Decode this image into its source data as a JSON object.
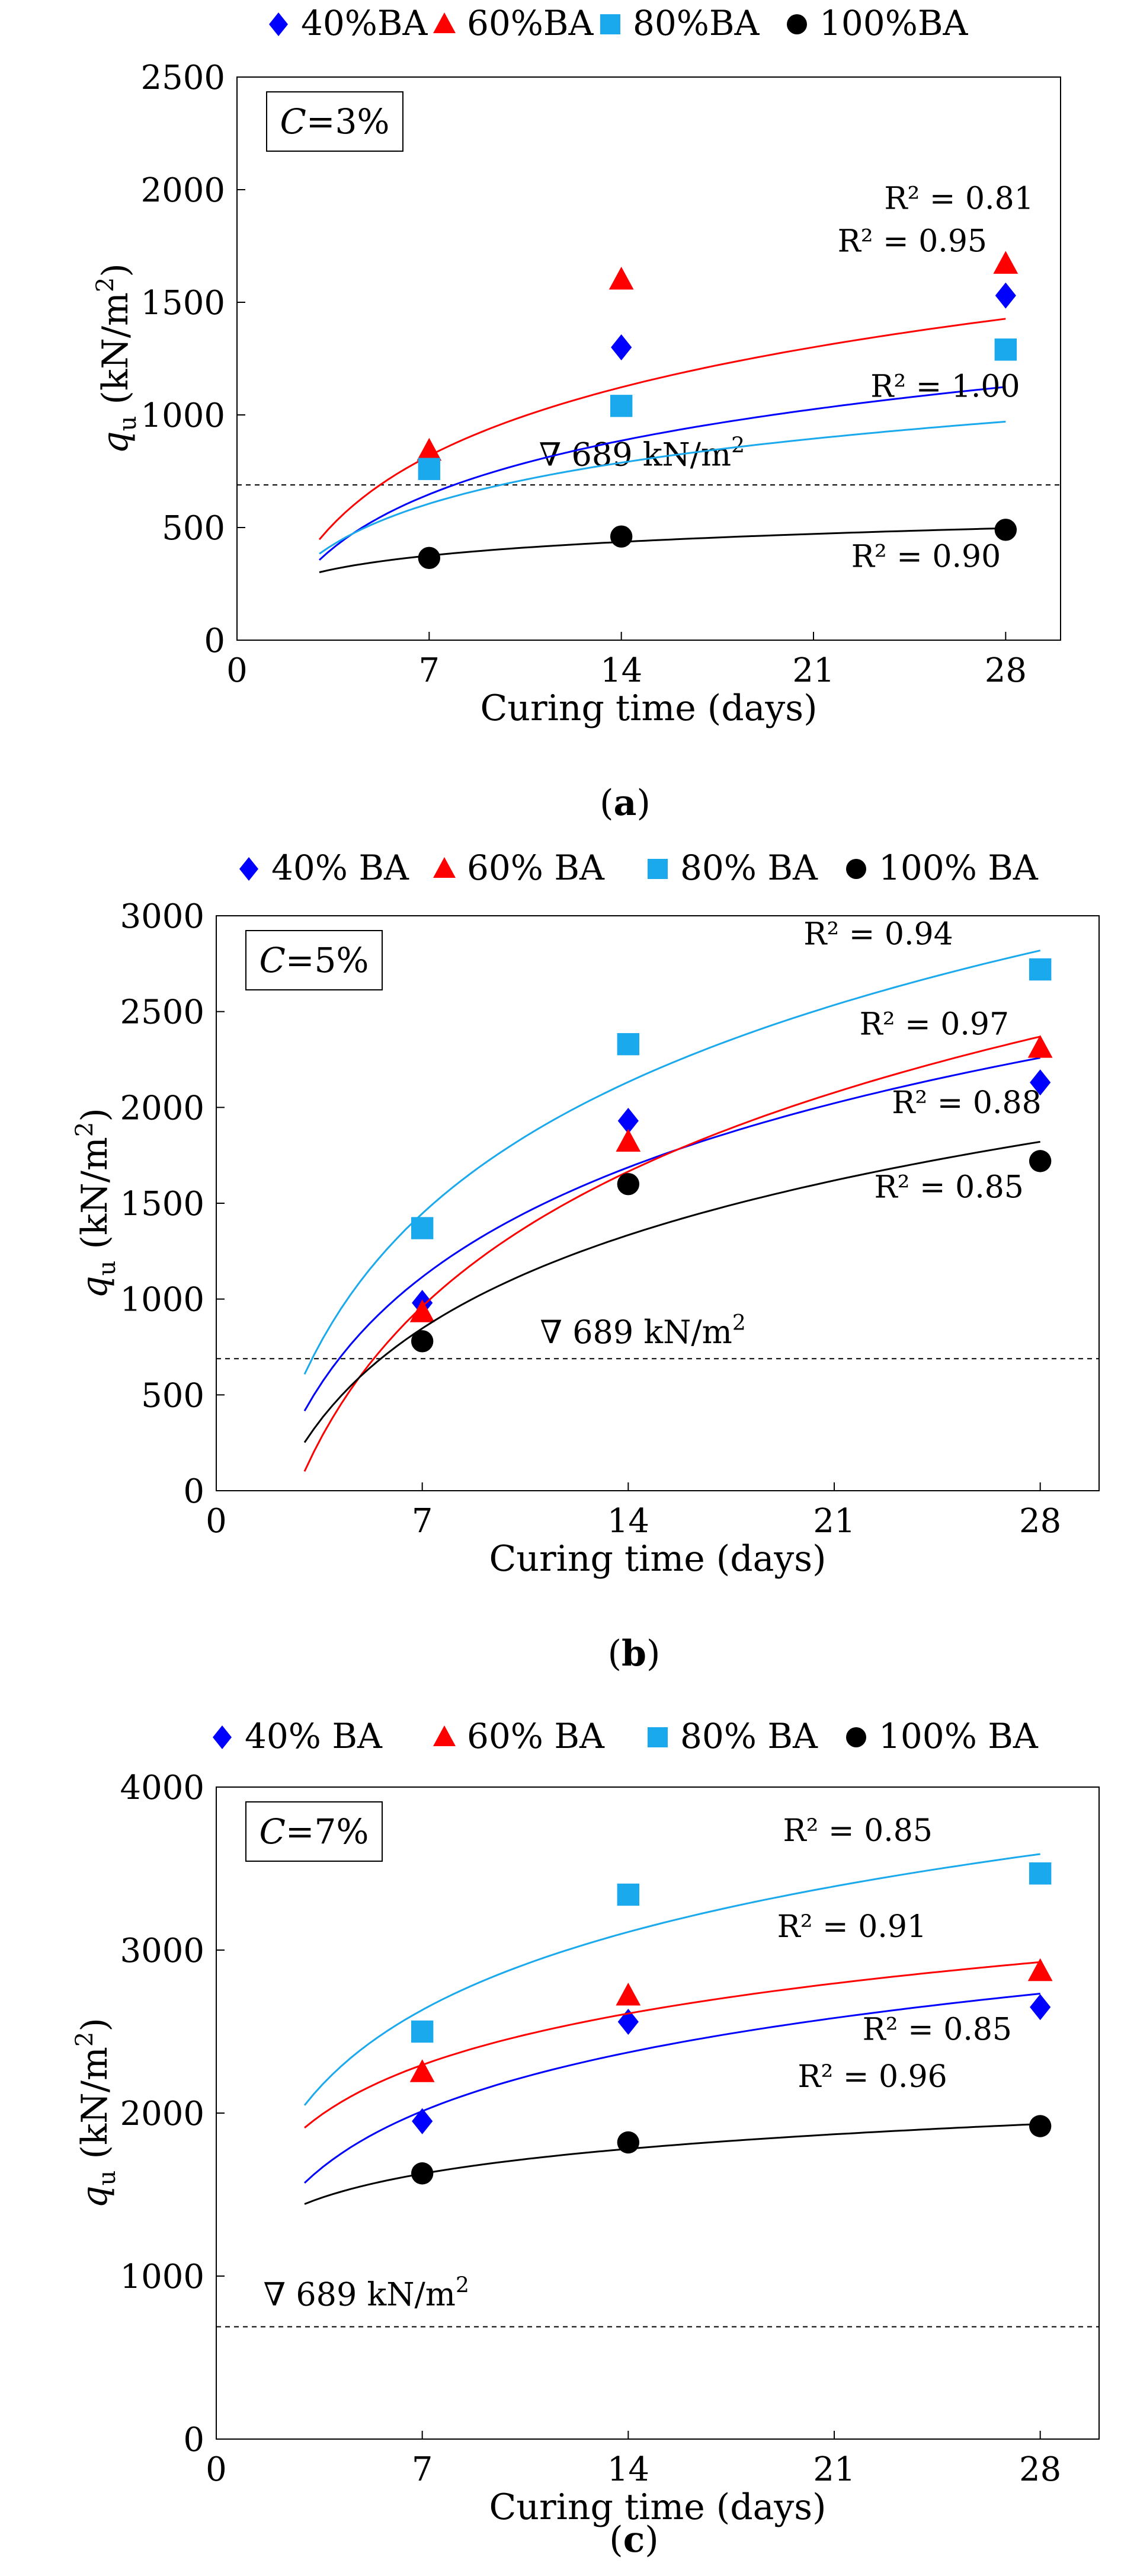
{
  "figure": {
    "panels_count": 3
  },
  "legend_default_marker_names": [
    "diamond",
    "triangle",
    "square",
    "circle"
  ],
  "chart_data": [
    {
      "type": "scatter",
      "panel_label": "(a)",
      "panel_label_letter": "a",
      "annotation_box": "C=3%",
      "xlabel": "Curing time (days)",
      "ylabel": "q_u (kN/m²)",
      "ylabel_parts": {
        "q": "q",
        "sub": "u",
        "unit": " (kN/m",
        "sup": "2",
        "close": ")"
      },
      "xlim": [
        0,
        30
      ],
      "ylim": [
        0,
        2500
      ],
      "xticks": [
        0,
        7,
        14,
        21,
        28
      ],
      "yticks": [
        0,
        500,
        1000,
        1500,
        2000,
        2500
      ],
      "reference_line": {
        "value": 689,
        "label": "∇ 689 kN/m",
        "label_sup": "2",
        "label_x": 11,
        "label_y": 775
      },
      "series": [
        {
          "name": "40%BA",
          "marker": "diamond",
          "color": "#0000ff",
          "x": [
            7,
            14,
            28
          ],
          "y": [
            810,
            1300,
            1530
          ],
          "fit": {
            "a": 344.0,
            "b": -22
          },
          "r2_label": "R² = 0.95",
          "r2_pos": [
            24.6,
            1725
          ]
        },
        {
          "name": "60%BA",
          "marker": "triangle",
          "color": "#ff0000",
          "x": [
            7,
            14,
            28
          ],
          "y": [
            840,
            1600,
            1670
          ],
          "fit": {
            "a": 438.7,
            "b": -35
          },
          "r2_label": "R² = 0.81",
          "r2_pos": [
            26.3,
            1915
          ]
        },
        {
          "name": "80%BA",
          "marker": "square",
          "color": "#1aa9ec",
          "x": [
            7,
            14,
            28
          ],
          "y": [
            760,
            1040,
            1290
          ],
          "fit": {
            "a": 262.6,
            "b": 95
          },
          "r2_label": "R² = 1.00",
          "r2_pos": [
            25.8,
            1080
          ]
        },
        {
          "name": "100%BA",
          "marker": "circle",
          "color": "#000000",
          "x": [
            7,
            14,
            28
          ],
          "y": [
            365,
            460,
            490
          ],
          "fit": {
            "a": 87.6,
            "b": 205
          },
          "r2_label": "R² = 0.90",
          "r2_pos": [
            25.1,
            325
          ]
        }
      ]
    },
    {
      "type": "scatter",
      "panel_label": "(b)",
      "panel_label_letter": "b",
      "annotation_box": "C=5%",
      "xlabel": "Curing time (days)",
      "ylabel": "q_u (kN/m²)",
      "ylabel_parts": {
        "q": "q",
        "sub": "u",
        "unit": " (kN/m",
        "sup": "2",
        "close": ")"
      },
      "xlim": [
        0,
        30
      ],
      "ylim": [
        0,
        3000
      ],
      "xticks": [
        0,
        7,
        14,
        21,
        28
      ],
      "yticks": [
        0,
        500,
        1000,
        1500,
        2000,
        2500,
        3000
      ],
      "reference_line": {
        "value": 689,
        "label": "∇ 689 kN/m",
        "label_sup": "2",
        "label_x": 11,
        "label_y": 770
      },
      "series": [
        {
          "name": "40% BA",
          "marker": "diamond",
          "color": "#0000ff",
          "x": [
            7,
            14,
            28
          ],
          "y": [
            980,
            1930,
            2130
          ],
          "fit": {
            "a": 825.0,
            "b": -490
          },
          "r2_label": "R² = 0.88",
          "r2_pos": [
            25.5,
            1970
          ]
        },
        {
          "name": "60% BA",
          "marker": "triangle",
          "color": "#ff0000",
          "x": [
            7,
            14,
            28
          ],
          "y": [
            930,
            1820,
            2310
          ],
          "fit": {
            "a": 1015.7,
            "b": -1015
          },
          "r2_label": "R² = 0.97",
          "r2_pos": [
            24.4,
            2380
          ]
        },
        {
          "name": "80% BA",
          "marker": "square",
          "color": "#1aa9ec",
          "x": [
            7,
            14,
            28
          ],
          "y": [
            1370,
            2330,
            2720
          ],
          "fit": {
            "a": 990.0,
            "b": -480
          },
          "r2_label": "R² = 0.94",
          "r2_pos": [
            22.5,
            2850
          ]
        },
        {
          "name": "100% BA",
          "marker": "circle",
          "color": "#000000",
          "x": [
            7,
            14,
            28
          ],
          "y": [
            780,
            1600,
            1720
          ],
          "fit": {
            "a": 702.5,
            "b": -520
          },
          "r2_label": "R² = 0.85",
          "r2_pos": [
            24.9,
            1530
          ]
        }
      ]
    },
    {
      "type": "scatter",
      "panel_label": "(c)",
      "panel_label_letter": "c",
      "annotation_box": "C=7%",
      "xlabel": "Curing time (days)",
      "ylabel": "q_u (kN/m²)",
      "ylabel_parts": {
        "q": "q",
        "sub": "u",
        "unit": " (kN/m",
        "sup": "2",
        "close": ")"
      },
      "xlim": [
        0,
        30
      ],
      "ylim": [
        0,
        4000
      ],
      "xticks": [
        0,
        7,
        14,
        21,
        28
      ],
      "yticks": [
        0,
        1000,
        2000,
        3000,
        4000
      ],
      "reference_line": {
        "value": 689,
        "label": "∇ 689 kN/m",
        "label_sup": "2",
        "label_x": 1.6,
        "label_y": 820
      },
      "series": [
        {
          "name": "40% BA",
          "marker": "diamond",
          "color": "#0000ff",
          "x": [
            7,
            14,
            28
          ],
          "y": [
            1950,
            2560,
            2650
          ],
          "fit": {
            "a": 520.0,
            "b": 1000
          },
          "r2_label": "R² = 0.85",
          "r2_pos": [
            24.5,
            2450
          ]
        },
        {
          "name": "60% BA",
          "marker": "triangle",
          "color": "#ff0000",
          "x": [
            7,
            14,
            28
          ],
          "y": [
            2250,
            2720,
            2870
          ],
          "fit": {
            "a": 455.0,
            "b": 1410
          },
          "r2_label": "R² = 0.91",
          "r2_pos": [
            21.6,
            3080
          ]
        },
        {
          "name": "80% BA",
          "marker": "square",
          "color": "#1aa9ec",
          "x": [
            7,
            14,
            28
          ],
          "y": [
            2500,
            3340,
            3470
          ],
          "fit": {
            "a": 690.0,
            "b": 1290
          },
          "r2_label": "R² = 0.85",
          "r2_pos": [
            21.8,
            3670
          ]
        },
        {
          "name": "100% BA",
          "marker": "circle",
          "color": "#000000",
          "x": [
            7,
            14,
            28
          ],
          "y": [
            1630,
            1820,
            1920
          ],
          "fit": {
            "a": 220.0,
            "b": 1200
          },
          "r2_label": "R² = 0.96",
          "r2_pos": [
            22.3,
            2160
          ]
        }
      ]
    }
  ]
}
